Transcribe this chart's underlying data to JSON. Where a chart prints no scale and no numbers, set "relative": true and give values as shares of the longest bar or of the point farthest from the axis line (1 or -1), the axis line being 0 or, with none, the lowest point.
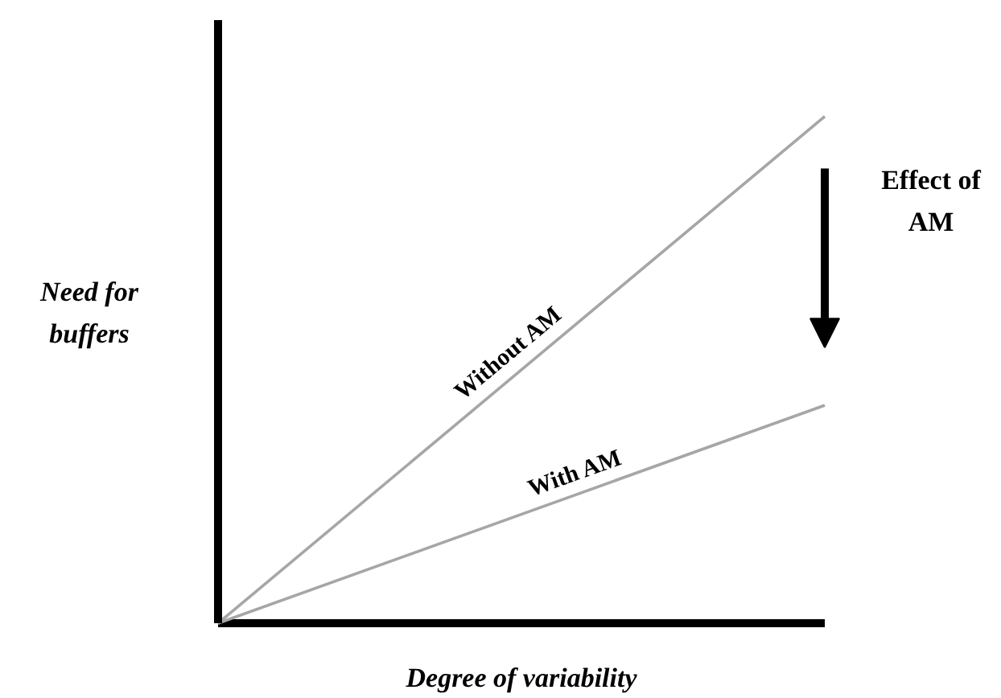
{
  "chart_data": {
    "type": "line",
    "relative": true,
    "xlabel": "Degree of variability",
    "ylabel": "Need for buffers",
    "categories": [
      null,
      null
    ],
    "series": [
      {
        "name": "Without AM",
        "color": "#a6a6a6",
        "values": [
          0,
          1
        ]
      },
      {
        "name": "With AM",
        "color": "#a6a6a6",
        "values": [
          0,
          0.43
        ]
      }
    ],
    "annotations": [
      "Effect of AM"
    ],
    "ref_lines": [
      {
        "axis": "y",
        "value": 0,
        "color": "#000000"
      }
    ],
    "grid": false,
    "legend": false,
    "marker": "none",
    "line_style": "solid"
  }
}
